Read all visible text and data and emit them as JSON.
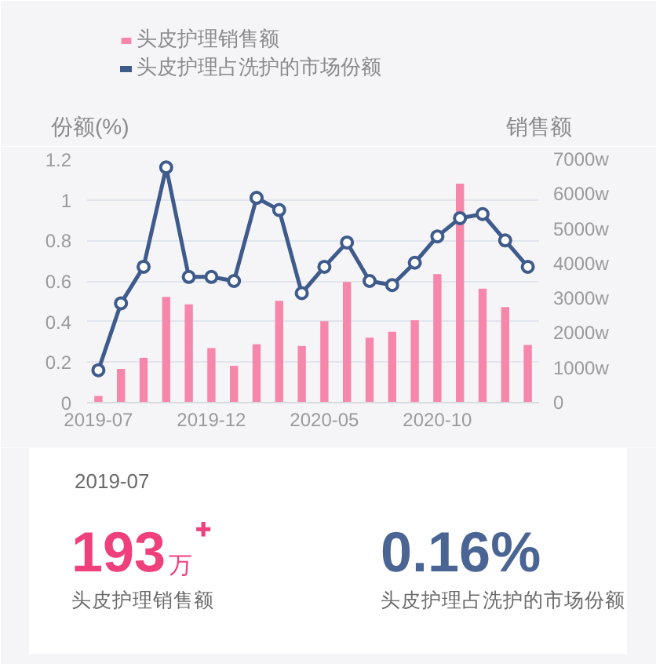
{
  "chart_data": [
    {
      "type": "bar",
      "categories": [
        "2019-07",
        null,
        null,
        null,
        null,
        "2019-12",
        null,
        null,
        null,
        null,
        "2020-05",
        null,
        null,
        null,
        null,
        "2020-10",
        null,
        null,
        null,
        null
      ],
      "series": [
        {
          "name": "头皮护理销售额",
          "type": "bar",
          "axis": "y2",
          "color": "#f687aa",
          "values": [
            193,
            970,
            1290,
            3040,
            2830,
            1570,
            1060,
            1680,
            2930,
            1630,
            2340,
            3470,
            1870,
            2040,
            2370,
            3700,
            6300,
            3280,
            2750,
            1660
          ]
        },
        {
          "name": "头皮护理占洗护的市场份额",
          "type": "line",
          "color": "#3e5b8c",
          "values": [
            0.16,
            0.49,
            0.67,
            1.16,
            0.62,
            0.62,
            0.6,
            1.01,
            0.95,
            0.54,
            0.67,
            0.79,
            0.6,
            0.58,
            0.69,
            0.82,
            0.91,
            0.93,
            0.8,
            0.67
          ]
        }
      ],
      "ylabel": "份额(%)",
      "y2label": "销售额",
      "ylim": [
        0,
        1.2
      ],
      "yticks": [
        0,
        0.2,
        0.4,
        0.6,
        0.8,
        1,
        1.2
      ],
      "y2lim": [
        0,
        7000
      ],
      "y2ticks": [
        0,
        {
          "value": 1000,
          "label": "1000w"
        },
        {
          "value": 2000,
          "label": "2000w"
        },
        {
          "value": 3000,
          "label": "3000w"
        },
        {
          "value": 4000,
          "label": "4000w"
        },
        {
          "value": 5000,
          "label": "5000w"
        },
        {
          "value": 6000,
          "label": "6000w"
        },
        {
          "value": 7000,
          "label": "7000w"
        }
      ],
      "grid": "y",
      "legend": "top",
      "marker": "circle"
    },
    {
      "type": "other",
      "title": "2019-07",
      "annotations": [
        "193万⁺",
        "头皮护理销售额",
        "0.16%",
        "头皮护理占洗护的市场份额"
      ],
      "colors": [
        "#ef407c",
        "#4a6594"
      ]
    }
  ]
}
